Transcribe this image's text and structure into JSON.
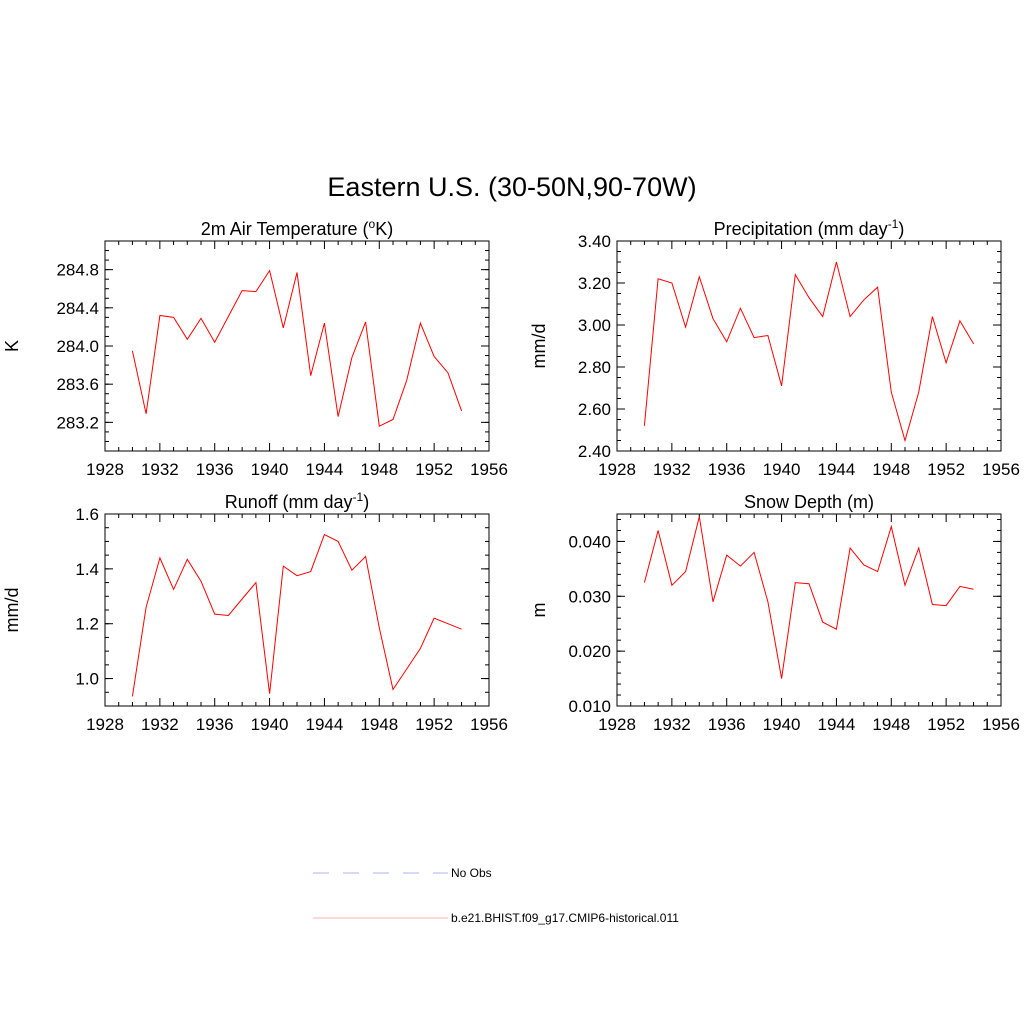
{
  "title": "Eastern U.S. (30-50N,90-70W)",
  "series_color": "#ff0000",
  "obs_color": "#b2b2ff",
  "legend": [
    {
      "label": "No Obs",
      "style": "dashed",
      "color": "#b2b2ff"
    },
    {
      "label": "b.e21.BHIST.f09_g17.CMIP6-historical.011",
      "style": "solid",
      "color": "#ffb2b2"
    }
  ],
  "chart_data": [
    {
      "type": "line",
      "title_main": "2m Air Temperature (",
      "title_sup": "o",
      "title_tail": "K)",
      "xlabel": "",
      "ylabel": "K",
      "xlim": [
        1928,
        1956
      ],
      "ylim": [
        282.9,
        285.1
      ],
      "x_ticks": [
        "1928",
        "1932",
        "1936",
        "1940",
        "1944",
        "1948",
        "1952",
        "1956"
      ],
      "y_ticks": [
        "283.2",
        "283.6",
        "284.0",
        "284.4",
        "284.8"
      ],
      "y_minor_step": 0.1,
      "x": [
        1930,
        1931,
        1932,
        1933,
        1934,
        1935,
        1936,
        1937,
        1938,
        1939,
        1940,
        1941,
        1942,
        1943,
        1944,
        1945,
        1946,
        1947,
        1948,
        1949,
        1950,
        1951,
        1952,
        1953,
        1954
      ],
      "series": [
        {
          "name": "b.e21.BHIST.f09_g17.CMIP6-historical.011",
          "values": [
            283.95,
            283.29,
            284.32,
            284.3,
            284.07,
            284.29,
            284.04,
            284.31,
            284.58,
            284.57,
            284.79,
            284.19,
            284.77,
            283.69,
            284.24,
            283.26,
            283.88,
            284.25,
            283.16,
            283.23,
            283.64,
            284.24,
            283.89,
            283.72,
            283.32
          ]
        }
      ]
    },
    {
      "type": "line",
      "title_main": "Precipitation (mm day",
      "title_sup": "-1",
      "title_tail": ")",
      "xlabel": "",
      "ylabel": "mm/d",
      "xlim": [
        1928,
        1956
      ],
      "ylim": [
        2.4,
        3.4
      ],
      "x_ticks": [
        "1928",
        "1932",
        "1936",
        "1940",
        "1944",
        "1948",
        "1952",
        "1956"
      ],
      "y_ticks": [
        "2.40",
        "2.60",
        "2.80",
        "3.00",
        "3.20",
        "3.40"
      ],
      "y_minor_step": 0.05,
      "x": [
        1930,
        1931,
        1932,
        1933,
        1934,
        1935,
        1936,
        1937,
        1938,
        1939,
        1940,
        1941,
        1942,
        1943,
        1944,
        1945,
        1946,
        1947,
        1948,
        1949,
        1950,
        1951,
        1952,
        1953,
        1954
      ],
      "series": [
        {
          "name": "b.e21.BHIST.f09_g17.CMIP6-historical.011",
          "values": [
            2.52,
            3.22,
            3.2,
            2.99,
            3.23,
            3.03,
            2.92,
            3.08,
            2.94,
            2.95,
            2.71,
            3.24,
            3.13,
            3.04,
            3.3,
            3.04,
            3.12,
            3.18,
            2.68,
            2.45,
            2.68,
            3.04,
            2.82,
            3.02,
            2.91
          ]
        }
      ]
    },
    {
      "type": "line",
      "title_main": "Runoff (mm day",
      "title_sup": "-1",
      "title_tail": ")",
      "xlabel": "",
      "ylabel": "mm/d",
      "xlim": [
        1928,
        1956
      ],
      "ylim": [
        0.9,
        1.6
      ],
      "x_ticks": [
        "1928",
        "1932",
        "1936",
        "1940",
        "1944",
        "1948",
        "1952",
        "1956"
      ],
      "y_ticks": [
        "1.0",
        "1.2",
        "1.4",
        "1.6"
      ],
      "y_minor_step": 0.05,
      "x": [
        1930,
        1931,
        1932,
        1933,
        1934,
        1935,
        1936,
        1937,
        1938,
        1939,
        1940,
        1941,
        1942,
        1943,
        1944,
        1945,
        1946,
        1947,
        1948,
        1949,
        1950,
        1951,
        1952,
        1953,
        1954
      ],
      "series": [
        {
          "name": "b.e21.BHIST.f09_g17.CMIP6-historical.011",
          "values": [
            0.935,
            1.26,
            1.44,
            1.325,
            1.435,
            1.355,
            1.235,
            1.23,
            1.29,
            1.35,
            0.945,
            1.41,
            1.375,
            1.39,
            1.525,
            1.5,
            1.395,
            1.445,
            1.185,
            0.96,
            1.035,
            1.11,
            1.22,
            1.2,
            1.18
          ]
        }
      ]
    },
    {
      "type": "line",
      "title_main": "Snow Depth (m)",
      "title_sup": "",
      "title_tail": "",
      "xlabel": "",
      "ylabel": "m",
      "xlim": [
        1928,
        1956
      ],
      "ylim": [
        0.01,
        0.045
      ],
      "x_ticks": [
        "1928",
        "1932",
        "1936",
        "1940",
        "1944",
        "1948",
        "1952",
        "1956"
      ],
      "y_ticks": [
        "0.010",
        "0.020",
        "0.030",
        "0.040"
      ],
      "y_minor_step": 0.002,
      "x": [
        1930,
        1931,
        1932,
        1933,
        1934,
        1935,
        1936,
        1937,
        1938,
        1939,
        1940,
        1941,
        1942,
        1943,
        1944,
        1945,
        1946,
        1947,
        1948,
        1949,
        1950,
        1951,
        1952,
        1953,
        1954
      ],
      "series": [
        {
          "name": "b.e21.BHIST.f09_g17.CMIP6-historical.011",
          "values": [
            0.0325,
            0.042,
            0.032,
            0.0345,
            0.0445,
            0.029,
            0.0375,
            0.0355,
            0.038,
            0.029,
            0.015,
            0.0325,
            0.0323,
            0.0253,
            0.024,
            0.0388,
            0.0357,
            0.0345,
            0.0427,
            0.032,
            0.0388,
            0.0285,
            0.0283,
            0.0318,
            0.0313
          ]
        }
      ]
    }
  ]
}
